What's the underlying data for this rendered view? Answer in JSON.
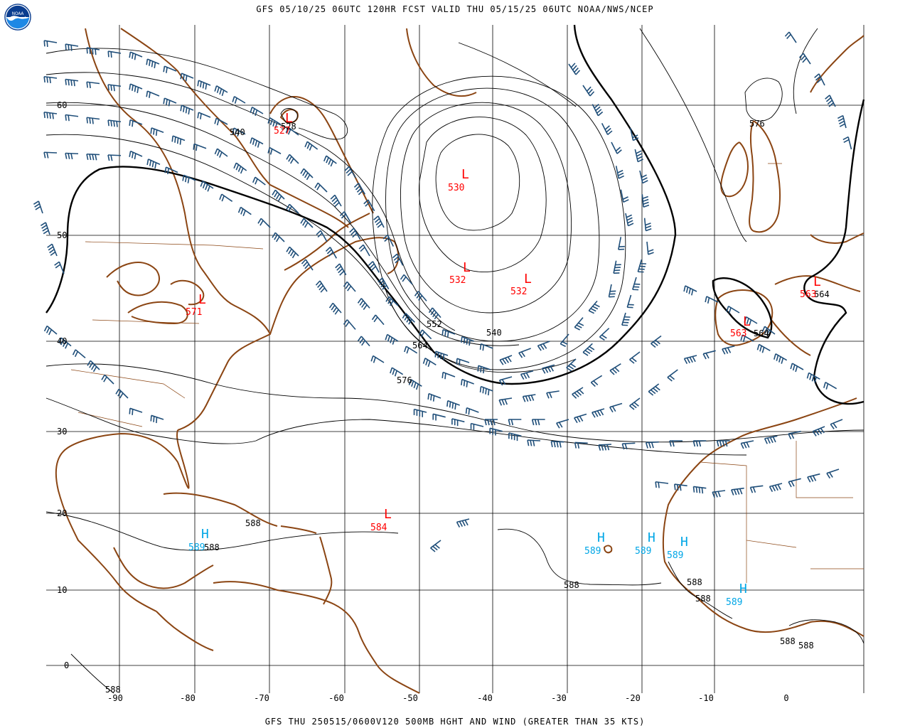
{
  "header": {
    "title": "GFS 05/10/25 06UTC 120HR FCST VALID THU 05/15/25 06UTC NOAA/NWS/NCEP",
    "logo_text": "NOAA"
  },
  "footer": {
    "caption": "GFS THU 250515/0600V120 500MB HGHT AND WIND (GREATER THAN 35 KTS)"
  },
  "axes": {
    "lat_labels": [
      "60",
      "50",
      "40",
      "30",
      "20",
      "10",
      "0"
    ],
    "lon_labels": [
      "-90",
      "-80",
      "-70",
      "-60",
      "-50",
      "-40",
      "-30",
      "-20",
      "-10",
      "0"
    ]
  },
  "contour_labels": [
    {
      "text": "540"
    },
    {
      "text": "528"
    },
    {
      "text": "552"
    },
    {
      "text": "564"
    },
    {
      "text": "576"
    },
    {
      "text": "540"
    },
    {
      "text": "576"
    },
    {
      "text": "564"
    },
    {
      "text": "564"
    },
    {
      "text": "588"
    },
    {
      "text": "588"
    },
    {
      "text": "588"
    },
    {
      "text": "588"
    },
    {
      "text": "588"
    },
    {
      "text": "588"
    },
    {
      "text": "588"
    },
    {
      "text": "588"
    }
  ],
  "lows": [
    {
      "symbol": "L",
      "value": "527"
    },
    {
      "symbol": "L",
      "value": "530"
    },
    {
      "symbol": "L",
      "value": "532"
    },
    {
      "symbol": "L",
      "value": "532"
    },
    {
      "symbol": "L",
      "value": "571"
    },
    {
      "symbol": "L",
      "value": "584"
    },
    {
      "symbol": "L",
      "value": "563"
    },
    {
      "symbol": "L",
      "value": "563"
    }
  ],
  "highs": [
    {
      "symbol": "H",
      "value": "589"
    },
    {
      "symbol": "H",
      "value": "589"
    },
    {
      "symbol": "H",
      "value": "589"
    },
    {
      "symbol": "H",
      "value": "589"
    },
    {
      "symbol": "H",
      "value": "589"
    }
  ],
  "colors": {
    "coast": "#8b4513",
    "wind": "#1f4e79",
    "low": "#ff0000",
    "high": "#00a6e6",
    "contour": "#000000",
    "grid": "#000000"
  }
}
